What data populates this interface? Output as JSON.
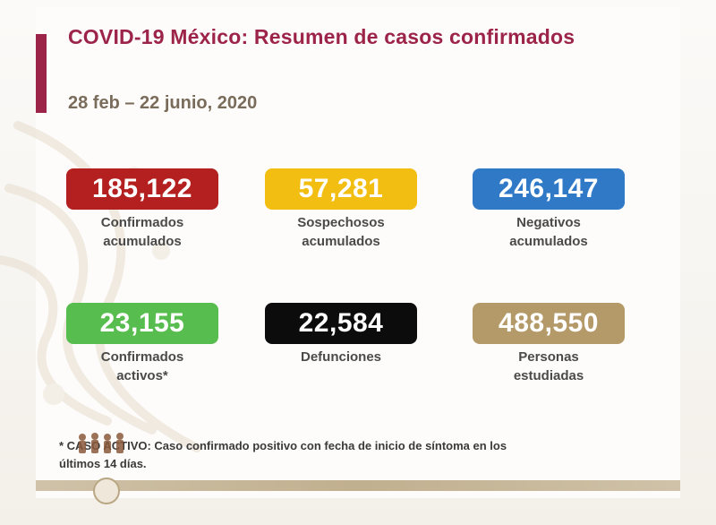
{
  "slide": {
    "title": "COVID-19 México: Resumen de casos confirmados",
    "date_range": "28 feb – 22 junio, 2020"
  },
  "stats": [
    {
      "id": "confirmados",
      "value": "185,122",
      "label_line1": "Confirmados",
      "label_line2": "acumulados",
      "color": "#b3201f"
    },
    {
      "id": "sospechosos",
      "value": "57,281",
      "label_line1": "Sospechosos",
      "label_line2": "acumulados",
      "color": "#f3be12"
    },
    {
      "id": "negativos",
      "value": "246,147",
      "label_line1": "Negativos",
      "label_line2": "acumulados",
      "color": "#2f79c7"
    },
    {
      "id": "activos",
      "value": "23,155",
      "label_line1": "Confirmados",
      "label_line2": "activos*",
      "color": "#58bd4f"
    },
    {
      "id": "defunciones",
      "value": "22,584",
      "label_line1": "Defunciones",
      "label_line2": "",
      "color": "#0c0c0c"
    },
    {
      "id": "estudiadas",
      "value": "488,550",
      "label_line1": "Personas",
      "label_line2": "estudiadas",
      "color": "#b49a68"
    }
  ],
  "footnote": {
    "line1": "* CASO ACTIVO: Caso confirmado positivo con fecha de inicio de síntoma en los",
    "line2": "últimos 14 días."
  },
  "colors": {
    "accent": "#9d2449",
    "date": "#7a6c5a",
    "footer": "#b6a27c"
  }
}
